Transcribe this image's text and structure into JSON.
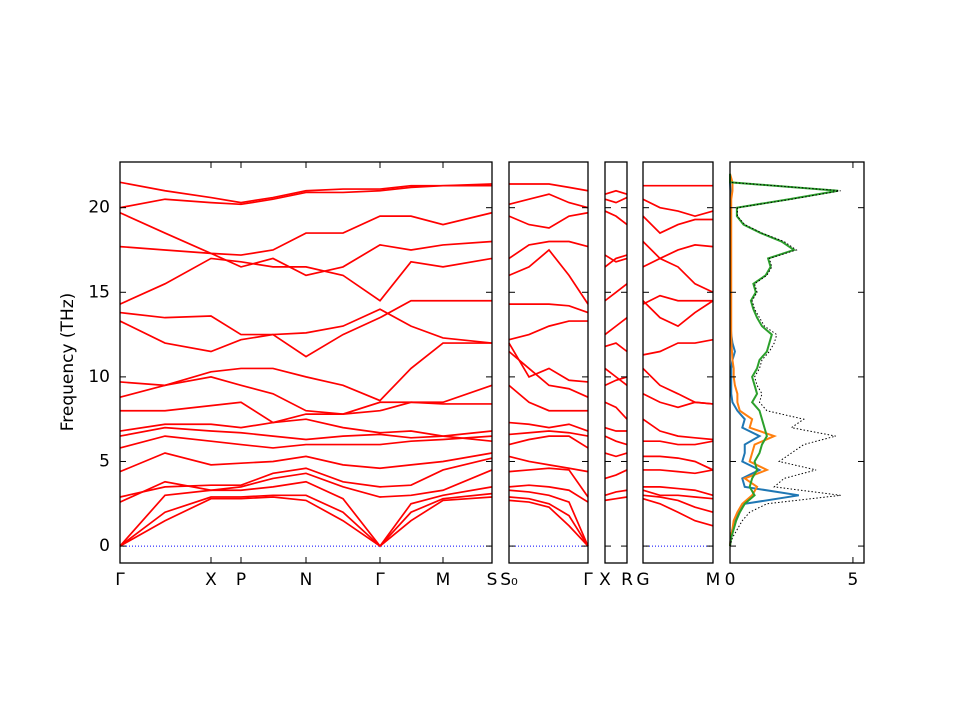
{
  "chart_data": [
    {
      "type": "line",
      "ylabel": "Frequency (THz)",
      "color": "#ff0000",
      "zero_line_color": "#0000ff",
      "ytick_labels": true,
      "xlim": [
        0,
        3.72
      ],
      "ylim": [
        -1,
        22.7
      ],
      "yticks": [
        0,
        5,
        10,
        15,
        20
      ],
      "xticks": [
        {
          "value": 0,
          "label": "Γ"
        },
        {
          "value": 0.91,
          "label": "X"
        },
        {
          "value": 1.21,
          "label": "P"
        },
        {
          "value": 1.86,
          "label": "N"
        },
        {
          "value": 2.6,
          "label": "Γ"
        },
        {
          "value": 3.23,
          "label": "M"
        },
        {
          "value": 3.72,
          "label": "S"
        }
      ],
      "x": [
        0,
        0.45,
        0.91,
        1.21,
        1.53,
        1.86,
        2.23,
        2.6,
        2.91,
        3.23,
        3.72
      ],
      "bands": [
        [
          0,
          1.5,
          2.8,
          2.8,
          2.9,
          2.7,
          1.5,
          0,
          1.5,
          2.7,
          2.9
        ],
        [
          0,
          2.0,
          2.9,
          2.9,
          3.0,
          3.0,
          2.0,
          0,
          2.0,
          2.8,
          3.1
        ],
        [
          0,
          3.0,
          3.3,
          3.3,
          3.5,
          3.8,
          2.8,
          0,
          2.5,
          3.0,
          3.5
        ],
        [
          2.6,
          3.8,
          3.3,
          3.5,
          4.0,
          4.3,
          3.5,
          2.9,
          3.0,
          3.3,
          4.5
        ],
        [
          2.9,
          3.5,
          3.6,
          3.6,
          4.3,
          4.6,
          3.8,
          3.5,
          3.6,
          4.5,
          5.2
        ],
        [
          4.4,
          5.5,
          4.8,
          4.9,
          5.0,
          5.3,
          4.8,
          4.6,
          4.8,
          5.0,
          5.5
        ],
        [
          5.8,
          6.5,
          6.2,
          6.0,
          5.8,
          6.0,
          6.0,
          6.0,
          6.2,
          6.3,
          6.5
        ],
        [
          6.5,
          7.0,
          6.8,
          6.7,
          6.5,
          6.3,
          6.5,
          6.6,
          6.4,
          6.5,
          6.8
        ],
        [
          6.8,
          7.2,
          7.2,
          7.0,
          7.3,
          7.5,
          7.0,
          6.7,
          6.8,
          6.5,
          6.2
        ],
        [
          8.0,
          8.0,
          8.3,
          8.5,
          7.3,
          7.8,
          7.8,
          8.0,
          8.5,
          8.5,
          9.5
        ],
        [
          8.8,
          9.5,
          10.0,
          9.5,
          9.0,
          8.0,
          7.8,
          8.5,
          8.5,
          8.4,
          8.4
        ],
        [
          9.7,
          9.5,
          10.3,
          10.5,
          10.5,
          10.0,
          9.5,
          8.6,
          10.5,
          12.0,
          12.0
        ],
        [
          13.3,
          12.0,
          11.5,
          12.2,
          12.5,
          12.6,
          13.0,
          14.0,
          13.0,
          12.3,
          12.0
        ],
        [
          13.8,
          13.5,
          13.6,
          12.5,
          12.5,
          11.2,
          12.5,
          13.5,
          14.5,
          14.5,
          14.5
        ],
        [
          14.3,
          15.5,
          17.0,
          16.8,
          16.5,
          16.5,
          16.0,
          14.5,
          16.8,
          16.5,
          17.0
        ],
        [
          17.7,
          17.5,
          17.3,
          16.5,
          17.0,
          16.0,
          16.5,
          17.8,
          17.5,
          17.8,
          18.0
        ],
        [
          19.7,
          18.5,
          17.3,
          17.2,
          17.5,
          18.5,
          18.5,
          19.5,
          19.5,
          19.0,
          19.7
        ],
        [
          20.0,
          20.5,
          20.3,
          20.2,
          20.5,
          20.9,
          20.9,
          21.0,
          21.2,
          21.3,
          21.4
        ],
        [
          21.5,
          21.0,
          20.6,
          20.3,
          20.6,
          21.0,
          21.1,
          21.1,
          21.3,
          21.3,
          21.3
        ]
      ]
    },
    {
      "type": "line",
      "color": "#ff0000",
      "zero_line_color": "#0000ff",
      "ytick_labels": false,
      "xlim": [
        0,
        0.79
      ],
      "ylim": [
        -1,
        22.7
      ],
      "yticks": [
        0,
        5,
        10,
        15,
        20
      ],
      "xticks": [
        {
          "value": 0,
          "label": "S₀"
        },
        {
          "value": 0.79,
          "label": "Γ"
        }
      ],
      "x": [
        0,
        0.2,
        0.4,
        0.6,
        0.79
      ],
      "bands": [
        [
          2.7,
          2.6,
          2.3,
          1.2,
          0
        ],
        [
          2.9,
          2.8,
          2.5,
          1.8,
          0
        ],
        [
          3.3,
          3.2,
          3.0,
          2.6,
          0
        ],
        [
          3.5,
          3.6,
          3.5,
          3.3,
          2.6
        ],
        [
          4.4,
          4.5,
          4.6,
          4.5,
          2.9
        ],
        [
          5.3,
          5.0,
          4.8,
          4.6,
          4.4
        ],
        [
          6.0,
          6.3,
          6.5,
          6.5,
          5.8
        ],
        [
          6.6,
          6.7,
          6.8,
          6.7,
          6.5
        ],
        [
          7.3,
          7.2,
          7.0,
          7.2,
          6.8
        ],
        [
          9.5,
          8.5,
          8.0,
          8.0,
          8.0
        ],
        [
          11.5,
          10.5,
          9.5,
          9.3,
          8.8
        ],
        [
          12.0,
          10.0,
          10.5,
          9.8,
          9.7
        ],
        [
          12.2,
          12.5,
          13.0,
          13.3,
          13.3
        ],
        [
          14.3,
          14.3,
          14.3,
          14.2,
          13.8
        ],
        [
          16.0,
          16.5,
          17.5,
          16.0,
          14.3
        ],
        [
          17.0,
          17.8,
          18.0,
          18.0,
          17.7
        ],
        [
          19.5,
          19.0,
          18.8,
          19.5,
          19.7
        ],
        [
          20.2,
          20.5,
          20.8,
          20.3,
          20.0
        ],
        [
          21.4,
          21.4,
          21.4,
          21.2,
          21.0
        ]
      ]
    },
    {
      "type": "line",
      "color": "#ff0000",
      "ytick_labels": false,
      "xlim": [
        0,
        0.22
      ],
      "ylim": [
        -1,
        22.7
      ],
      "yticks": [
        0,
        5,
        10,
        15,
        20
      ],
      "xticks": [
        {
          "value": 0,
          "label": "X"
        },
        {
          "value": 0.22,
          "label": "R"
        }
      ],
      "x": [
        0,
        0.11,
        0.22
      ],
      "bands": [
        [
          2.7,
          2.8,
          2.9
        ],
        [
          3.0,
          3.2,
          3.3
        ],
        [
          4.0,
          4.2,
          4.5
        ],
        [
          5.5,
          5.3,
          5.5
        ],
        [
          6.5,
          6.2,
          6.0
        ],
        [
          7.0,
          6.8,
          6.8
        ],
        [
          8.5,
          8.2,
          7.5
        ],
        [
          9.5,
          9.8,
          10.0
        ],
        [
          10.5,
          10.0,
          9.5
        ],
        [
          11.8,
          12.0,
          11.5
        ],
        [
          12.5,
          13.0,
          13.5
        ],
        [
          14.5,
          15.0,
          15.5
        ],
        [
          16.5,
          17.0,
          17.2
        ],
        [
          17.2,
          16.8,
          17.0
        ],
        [
          19.8,
          19.5,
          19.0
        ],
        [
          20.5,
          20.3,
          20.6
        ],
        [
          20.8,
          21.0,
          20.8
        ]
      ]
    },
    {
      "type": "line",
      "color": "#ff0000",
      "zero_line_color": "#0000ff",
      "ytick_labels": false,
      "xlim": [
        0,
        0.7
      ],
      "ylim": [
        -1,
        22.7
      ],
      "yticks": [
        0,
        5,
        10,
        15,
        20
      ],
      "xticks": [
        {
          "value": 0,
          "label": "G"
        },
        {
          "value": 0.7,
          "label": "M"
        }
      ],
      "x": [
        0,
        0.17,
        0.35,
        0.52,
        0.7
      ],
      "bands": [
        [
          2.8,
          2.5,
          2.0,
          1.5,
          1.2
        ],
        [
          3.0,
          2.9,
          2.7,
          2.3,
          2.0
        ],
        [
          3.3,
          3.0,
          3.0,
          2.9,
          2.8
        ],
        [
          3.5,
          3.5,
          3.4,
          3.3,
          3.0
        ],
        [
          4.5,
          4.5,
          4.4,
          4.3,
          4.5
        ],
        [
          5.3,
          5.3,
          5.2,
          5.0,
          4.5
        ],
        [
          6.2,
          6.2,
          6.0,
          6.0,
          6.2
        ],
        [
          7.5,
          6.8,
          6.5,
          6.4,
          6.3
        ],
        [
          9.0,
          8.5,
          8.2,
          8.5,
          8.4
        ],
        [
          10.5,
          9.5,
          9.0,
          8.5,
          8.4
        ],
        [
          11.3,
          11.5,
          12.0,
          12.0,
          12.2
        ],
        [
          14.3,
          14.8,
          14.5,
          14.5,
          14.5
        ],
        [
          14.5,
          13.5,
          13.0,
          13.8,
          14.5
        ],
        [
          16.5,
          17.0,
          16.5,
          15.5,
          15.0
        ],
        [
          18.0,
          17.0,
          17.5,
          17.8,
          17.7
        ],
        [
          19.5,
          18.5,
          19.0,
          19.3,
          19.3
        ],
        [
          20.5,
          20.0,
          19.8,
          19.5,
          19.8
        ],
        [
          21.3,
          21.3,
          21.3,
          21.3,
          21.3
        ]
      ]
    },
    {
      "type": "line",
      "orientation": "horizontal",
      "ytick_labels": false,
      "xlim": [
        0,
        5.45
      ],
      "ylim": [
        -1,
        22.7
      ],
      "yticks": [
        0,
        5,
        10,
        15,
        20
      ],
      "xticks": [
        0,
        5
      ],
      "y": [
        0,
        0.5,
        1,
        1.5,
        2,
        2.5,
        3,
        3.5,
        4,
        4.5,
        5,
        5.5,
        6,
        6.5,
        7,
        7.5,
        8,
        8.5,
        9,
        9.5,
        10,
        10.5,
        11,
        11.5,
        12,
        12.5,
        13,
        13.5,
        14,
        14.5,
        15,
        15.5,
        16,
        16.5,
        17,
        17.5,
        18,
        18.5,
        19,
        19.5,
        20,
        20.5,
        21,
        21.5,
        22
      ],
      "series": [
        {
          "color": "#1f77b4",
          "style": "solid",
          "values": [
            0,
            0.03,
            0.1,
            0.2,
            0.35,
            0.6,
            2.8,
            0.6,
            0.5,
            1.2,
            0.5,
            0.6,
            0.6,
            1.2,
            0.5,
            0.6,
            0.3,
            0.1,
            0.05,
            0.05,
            0.05,
            0.05,
            0.1,
            0.2,
            0.1,
            0.05,
            0.03,
            0.03,
            0.02,
            0.02,
            0.02,
            0.02,
            0.02,
            0.02,
            0.02,
            0.02,
            0.02,
            0.02,
            0.02,
            0.02,
            0.02,
            0.02,
            0.02,
            0,
            0
          ]
        },
        {
          "color": "#ff7f0e",
          "style": "solid",
          "values": [
            0,
            0.03,
            0.1,
            0.15,
            0.3,
            0.5,
            0.9,
            1.1,
            0.6,
            1.5,
            0.8,
            0.9,
            1.0,
            1.8,
            0.8,
            0.9,
            0.4,
            0.3,
            0.3,
            0.2,
            0.15,
            0.15,
            0.1,
            0.08,
            0.06,
            0.05,
            0.05,
            0.05,
            0.05,
            0.05,
            0.05,
            0.05,
            0.05,
            0.05,
            0.05,
            0.05,
            0.05,
            0.05,
            0.05,
            0.05,
            0.05,
            0.05,
            0.1,
            0.1,
            0
          ]
        },
        {
          "color": "#2ca02c",
          "style": "solid",
          "values": [
            0,
            0.05,
            0.15,
            0.25,
            0.4,
            0.6,
            1.0,
            0.8,
            0.9,
            1.1,
            1.0,
            1.2,
            1.3,
            1.5,
            1.4,
            1.3,
            1.2,
            0.9,
            1.1,
            1.0,
            0.9,
            1.1,
            1.2,
            1.5,
            1.6,
            1.7,
            1.3,
            1.1,
            0.95,
            0.85,
            1.05,
            0.95,
            1.45,
            1.65,
            1.55,
            2.6,
            2.1,
            1.25,
            0.55,
            0.28,
            0.28,
            2.4,
            4.4,
            0,
            0
          ]
        },
        {
          "color": "#000000",
          "style": "dotted",
          "values": [
            0,
            0.1,
            0.3,
            0.5,
            0.8,
            1.5,
            4.5,
            1.8,
            2.2,
            3.5,
            2.0,
            2.5,
            3.0,
            4.3,
            2.5,
            3.0,
            1.5,
            1.2,
            1.3,
            1.1,
            1.0,
            1.2,
            1.3,
            1.6,
            1.8,
            1.9,
            1.4,
            1.2,
            1.0,
            0.9,
            1.1,
            1.0,
            1.5,
            1.7,
            1.6,
            2.7,
            2.2,
            1.3,
            0.6,
            0.3,
            0.3,
            2.5,
            4.5,
            0,
            0
          ]
        }
      ]
    }
  ]
}
